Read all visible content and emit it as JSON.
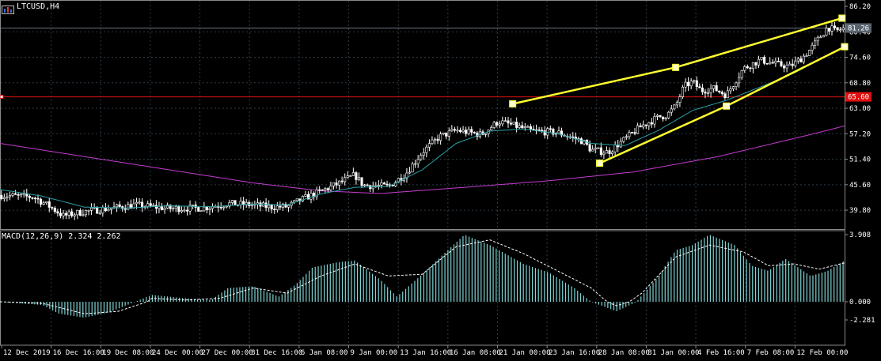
{
  "header": {
    "symbol": "LTCUSD,H4"
  },
  "macd_label": "MACD(12,26,9) 2.324 2.262",
  "price_badges": {
    "current": "81.26",
    "line": "65.60"
  },
  "colors": {
    "background": "#000000",
    "grid": "#2e3b46",
    "candle": "#ffffff",
    "ma_fast": "#2aa1a6",
    "ma_slow": "#c43cd0",
    "trendline": "#ffff2e",
    "hline": "#e01010",
    "macd_hist": "#7fd5d5",
    "macd_signal": "#ffffff"
  },
  "chart_data": [
    {
      "type": "candlestick",
      "title": "LTCUSD,H4",
      "y_ticks": [
        "86.20",
        "80.40",
        "74.60",
        "68.80",
        "63.00",
        "57.20",
        "51.40",
        "45.60",
        "39.80"
      ],
      "ylim": [
        35.5,
        86.2
      ],
      "x_ticks": [
        "12 Dec 2019",
        "16 Dec 16:00",
        "19 Dec 08:00",
        "24 Dec 00:00",
        "27 Dec 00:00",
        "31 Dec 16:00",
        "6 Jan 08:00",
        "9 Jan 00:00",
        "13 Jan 16:00",
        "16 Jan 08:00",
        "21 Jan 00:00",
        "23 Jan 16:00",
        "28 Jan 08:00",
        "31 Jan 00:00",
        "4 Feb 16:00",
        "7 Feb 08:00",
        "12 Feb 00:00"
      ],
      "close_path": [
        [
          0,
          43.2
        ],
        [
          0.04,
          42.8
        ],
        [
          0.06,
          40.5
        ],
        [
          0.075,
          38.5
        ],
        [
          0.1,
          39.5
        ],
        [
          0.13,
          40.2
        ],
        [
          0.16,
          41.0
        ],
        [
          0.2,
          40.2
        ],
        [
          0.24,
          40.3
        ],
        [
          0.27,
          41.3
        ],
        [
          0.3,
          41.0
        ],
        [
          0.32,
          40.5
        ],
        [
          0.34,
          40.6
        ],
        [
          0.36,
          42.5
        ],
        [
          0.4,
          45.8
        ],
        [
          0.42,
          47.8
        ],
        [
          0.43,
          45.5
        ],
        [
          0.46,
          45.2
        ],
        [
          0.48,
          48.0
        ],
        [
          0.5,
          53.0
        ],
        [
          0.52,
          56.5
        ],
        [
          0.54,
          58.0
        ],
        [
          0.57,
          57.0
        ],
        [
          0.59,
          60.0
        ],
        [
          0.61,
          59.0
        ],
        [
          0.63,
          57.8
        ],
        [
          0.66,
          57.5
        ],
        [
          0.69,
          55.5
        ],
        [
          0.7,
          53.5
        ],
        [
          0.72,
          53.0
        ],
        [
          0.74,
          56.0
        ],
        [
          0.76,
          59.0
        ],
        [
          0.78,
          61.0
        ],
        [
          0.79,
          61.5
        ],
        [
          0.8,
          63.5
        ],
        [
          0.81,
          68.0
        ],
        [
          0.82,
          69.0
        ],
        [
          0.83,
          67.0
        ],
        [
          0.845,
          67.5
        ],
        [
          0.86,
          66.0
        ],
        [
          0.87,
          69.0
        ],
        [
          0.88,
          72.0
        ],
        [
          0.9,
          74.0
        ],
        [
          0.92,
          73.0
        ],
        [
          0.935,
          72.5
        ],
        [
          0.95,
          74.5
        ],
        [
          0.96,
          76.5
        ],
        [
          0.97,
          79.0
        ],
        [
          0.98,
          81.5
        ],
        [
          0.99,
          80.5
        ],
        [
          1.0,
          81.3
        ]
      ],
      "ma_fast": [
        [
          0,
          44.5
        ],
        [
          0.05,
          43.0
        ],
        [
          0.1,
          40.5
        ],
        [
          0.15,
          40.3
        ],
        [
          0.2,
          40.8
        ],
        [
          0.25,
          40.6
        ],
        [
          0.3,
          41.2
        ],
        [
          0.34,
          41.0
        ],
        [
          0.38,
          43.5
        ],
        [
          0.42,
          45.0
        ],
        [
          0.46,
          45.2
        ],
        [
          0.5,
          49.0
        ],
        [
          0.54,
          55.0
        ],
        [
          0.58,
          57.8
        ],
        [
          0.62,
          58.3
        ],
        [
          0.66,
          57.2
        ],
        [
          0.7,
          55.0
        ],
        [
          0.74,
          54.5
        ],
        [
          0.78,
          58.0
        ],
        [
          0.82,
          62.5
        ],
        [
          0.86,
          64.8
        ],
        [
          0.9,
          67.8
        ],
        [
          0.94,
          71.0
        ],
        [
          0.98,
          75.0
        ],
        [
          1.0,
          77.0
        ]
      ],
      "ma_slow": [
        [
          0,
          55.0
        ],
        [
          0.1,
          52.0
        ],
        [
          0.2,
          49.0
        ],
        [
          0.3,
          46.0
        ],
        [
          0.38,
          44.2
        ],
        [
          0.45,
          43.6
        ],
        [
          0.55,
          45.0
        ],
        [
          0.65,
          46.5
        ],
        [
          0.75,
          48.5
        ],
        [
          0.85,
          52.0
        ],
        [
          0.92,
          55.2
        ],
        [
          0.97,
          57.5
        ],
        [
          1.0,
          59.0
        ]
      ],
      "trend_upper": [
        [
          0.607,
          64.0
        ],
        [
          0.8,
          72.3
        ],
        [
          0.997,
          83.5
        ]
      ],
      "trend_lower": [
        [
          0.71,
          50.5
        ],
        [
          0.86,
          63.5
        ],
        [
          1.0,
          77.0
        ]
      ],
      "hline": 65.6,
      "current_price": 81.26
    },
    {
      "type": "bar",
      "title": "MACD(12,26,9) 2.324 2.262",
      "y_ticks": [
        "3.908",
        "0.000",
        "-2.281"
      ],
      "ylim": [
        -2.281,
        3.908
      ],
      "histogram_path": [
        [
          0,
          0
        ],
        [
          0.05,
          -0.4
        ],
        [
          0.07,
          -1.5
        ],
        [
          0.1,
          -2.0
        ],
        [
          0.13,
          -1.3
        ],
        [
          0.16,
          0
        ],
        [
          0.18,
          0.4
        ],
        [
          0.22,
          0.2
        ],
        [
          0.25,
          0.1
        ],
        [
          0.27,
          0.8
        ],
        [
          0.3,
          0.9
        ],
        [
          0.33,
          0.3
        ],
        [
          0.35,
          1.0
        ],
        [
          0.37,
          2.0
        ],
        [
          0.4,
          2.3
        ],
        [
          0.42,
          2.4
        ],
        [
          0.45,
          1.3
        ],
        [
          0.47,
          0.3
        ],
        [
          0.5,
          1.6
        ],
        [
          0.53,
          3.0
        ],
        [
          0.55,
          3.9
        ],
        [
          0.58,
          3.3
        ],
        [
          0.62,
          2.2
        ],
        [
          0.65,
          1.7
        ],
        [
          0.68,
          0.8
        ],
        [
          0.71,
          -0.4
        ],
        [
          0.73,
          -1.2
        ],
        [
          0.75,
          -0.2
        ],
        [
          0.78,
          1.5
        ],
        [
          0.8,
          3.0
        ],
        [
          0.82,
          3.3
        ],
        [
          0.84,
          3.9
        ],
        [
          0.87,
          3.3
        ],
        [
          0.89,
          2.1
        ],
        [
          0.91,
          1.8
        ],
        [
          0.93,
          2.5
        ],
        [
          0.96,
          1.5
        ],
        [
          0.98,
          1.8
        ],
        [
          1.0,
          2.4
        ]
      ],
      "signal_path": [
        [
          0,
          0
        ],
        [
          0.05,
          -0.2
        ],
        [
          0.1,
          -1.5
        ],
        [
          0.14,
          -1.2
        ],
        [
          0.18,
          0.2
        ],
        [
          0.22,
          0.1
        ],
        [
          0.26,
          0.2
        ],
        [
          0.3,
          0.8
        ],
        [
          0.34,
          0.5
        ],
        [
          0.38,
          1.5
        ],
        [
          0.42,
          2.2
        ],
        [
          0.46,
          1.5
        ],
        [
          0.5,
          1.6
        ],
        [
          0.54,
          3.2
        ],
        [
          0.58,
          3.6
        ],
        [
          0.62,
          2.8
        ],
        [
          0.66,
          1.8
        ],
        [
          0.7,
          0.8
        ],
        [
          0.73,
          -0.5
        ],
        [
          0.76,
          0.5
        ],
        [
          0.8,
          2.6
        ],
        [
          0.84,
          3.3
        ],
        [
          0.88,
          2.9
        ],
        [
          0.91,
          2.1
        ],
        [
          0.94,
          2.2
        ],
        [
          0.97,
          1.9
        ],
        [
          1.0,
          2.26
        ]
      ]
    }
  ]
}
